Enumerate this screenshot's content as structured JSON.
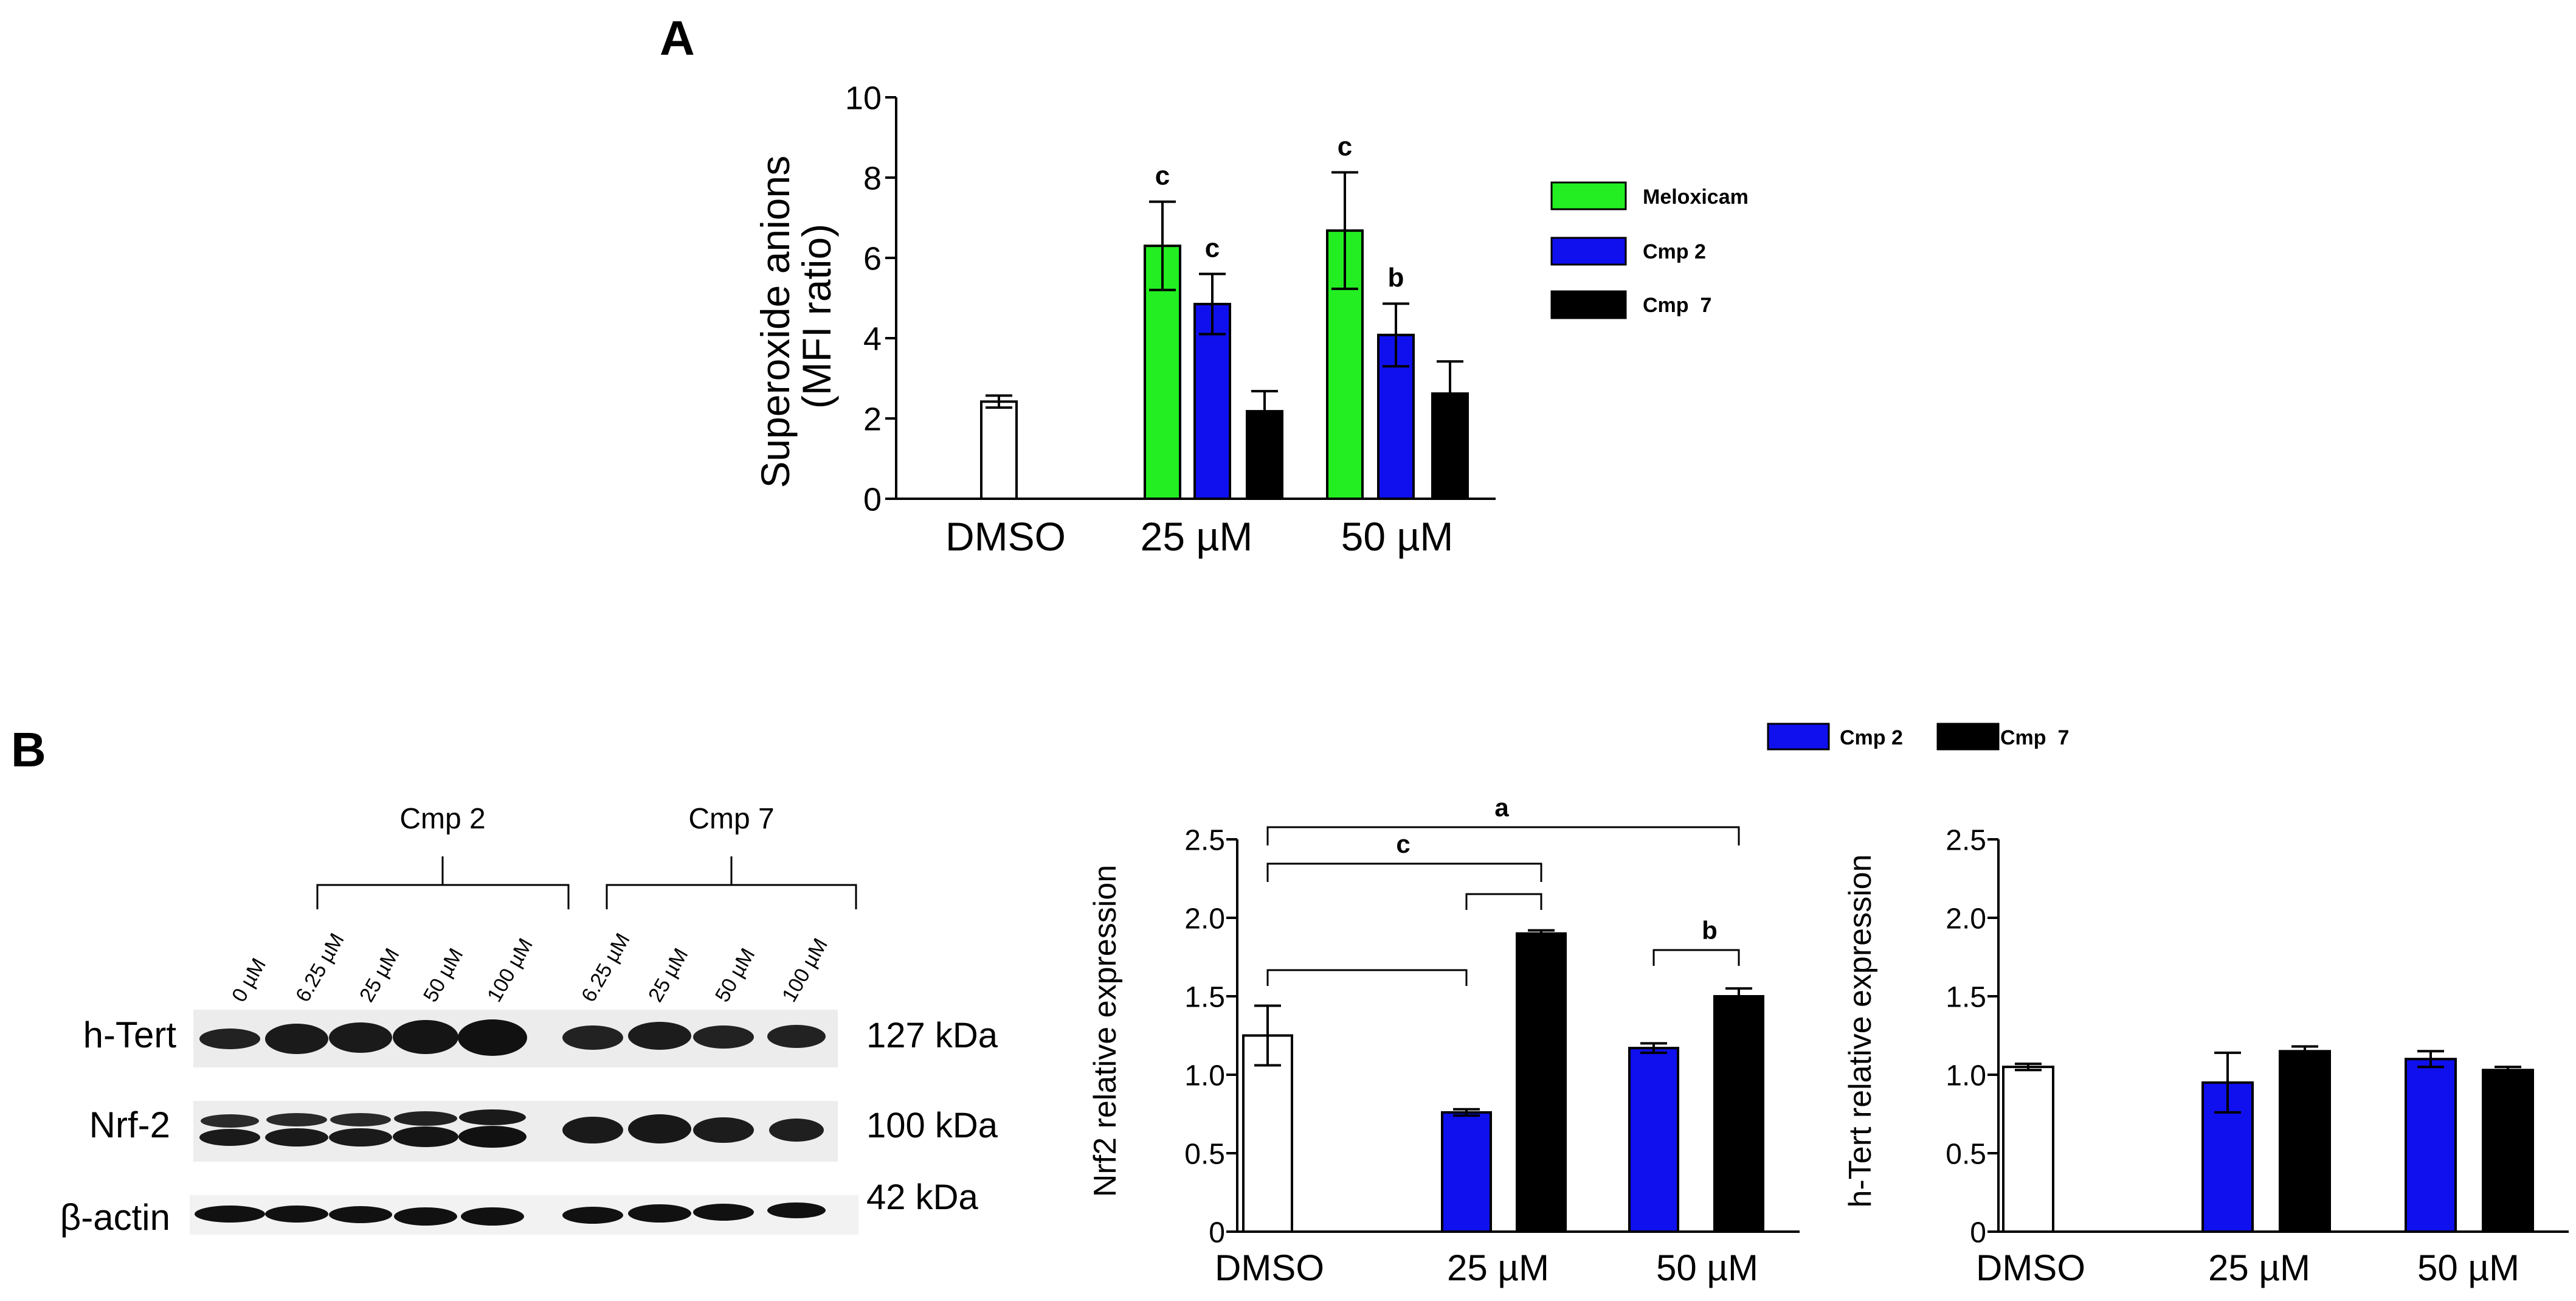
{
  "panels": {
    "a": "A",
    "b": "B"
  },
  "colors": {
    "meloxicam": "#22ee22",
    "cmp2": "#1010ee",
    "cmp7": "#000000",
    "dmso": "#ffffff"
  },
  "legend_a": [
    {
      "label": "Meloxicam",
      "color": "#22ee22"
    },
    {
      "label": "Cmp 2",
      "color": "#1010ee"
    },
    {
      "label": "Cmp  7",
      "color": "#000000"
    }
  ],
  "legend_b": [
    {
      "label": "Cmp 2",
      "color": "#1010ee"
    },
    {
      "label": "Cmp  7",
      "color": "#000000"
    }
  ],
  "chart_data": [
    {
      "id": "superoxide",
      "type": "bar",
      "ylabel_lines": [
        "Superoxide anions",
        "(MFI ratio)"
      ],
      "ylim": [
        0,
        10
      ],
      "yticks": [
        "0",
        "2",
        "4",
        "6",
        "8",
        "10"
      ],
      "ytick_values": [
        0,
        2,
        4,
        6,
        8,
        10
      ],
      "categories": [
        "DMSO",
        "25 µM",
        "50 µM"
      ],
      "bars": [
        {
          "category": "DMSO",
          "series": "DMSO",
          "value": 2.42,
          "error": 0.15,
          "label": ""
        },
        {
          "category": "25 µM",
          "series": "Meloxicam",
          "value": 6.3,
          "error": 1.1,
          "label": "c"
        },
        {
          "category": "25 µM",
          "series": "Cmp 2",
          "value": 4.85,
          "error": 0.75,
          "label": "c"
        },
        {
          "category": "25 µM",
          "series": "Cmp  7",
          "value": 2.18,
          "error": 0.5,
          "label": ""
        },
        {
          "category": "50 µM",
          "series": "Meloxicam",
          "value": 6.68,
          "error": 1.45,
          "label": "c"
        },
        {
          "category": "50 µM",
          "series": "Cmp 2",
          "value": 4.08,
          "error": 0.78,
          "label": "b"
        },
        {
          "category": "50 µM",
          "series": "Cmp  7",
          "value": 2.62,
          "error": 0.8,
          "label": ""
        }
      ]
    },
    {
      "id": "nrf2",
      "type": "bar",
      "ylabel": "Nrf2 relative expression",
      "ylim": [
        0,
        2.5
      ],
      "yticks": [
        "0",
        "0.5",
        "1.0",
        "1.5",
        "2.0",
        "2.5"
      ],
      "ytick_values": [
        0,
        0.5,
        1.0,
        1.5,
        2.0,
        2.5
      ],
      "categories": [
        "DMSO",
        "25 µM",
        "50 µM"
      ],
      "bars": [
        {
          "category": "DMSO",
          "series": "DMSO",
          "value": 1.25,
          "error": 0.19
        },
        {
          "category": "25 µM",
          "series": "Cmp 2",
          "value": 0.76,
          "error": 0.02
        },
        {
          "category": "25 µM",
          "series": "Cmp  7",
          "value": 1.9,
          "error": 0.02
        },
        {
          "category": "50 µM",
          "series": "Cmp 2",
          "value": 1.17,
          "error": 0.03
        },
        {
          "category": "50 µM",
          "series": "Cmp  7",
          "value": 1.5,
          "error": 0.05
        }
      ],
      "brackets": [
        {
          "from": "DMSO",
          "to": "50 µM Cmp  7",
          "label": "a"
        },
        {
          "from": "DMSO",
          "to": "25 µM Cmp  7",
          "label": "c"
        },
        {
          "from": "25 µM Cmp 2",
          "to": "25 µM Cmp  7",
          "label": ""
        },
        {
          "from": "DMSO",
          "to": "25 µM Cmp 2",
          "label": ""
        },
        {
          "from": "50 µM Cmp 2",
          "to": "50 µM Cmp  7",
          "label": "b"
        }
      ]
    },
    {
      "id": "htert",
      "type": "bar",
      "ylabel": "h-Tert relative expression",
      "ylim": [
        0,
        2.5
      ],
      "yticks": [
        "0",
        "0.5",
        "1.0",
        "1.5",
        "2.0",
        "2.5"
      ],
      "ytick_values": [
        0,
        0.5,
        1.0,
        1.5,
        2.0,
        2.5
      ],
      "categories": [
        "DMSO",
        "25 µM",
        "50 µM"
      ],
      "bars": [
        {
          "category": "DMSO",
          "series": "DMSO",
          "value": 1.05,
          "error": 0.02
        },
        {
          "category": "25 µM",
          "series": "Cmp 2",
          "value": 0.95,
          "error": 0.19
        },
        {
          "category": "25 µM",
          "series": "Cmp  7",
          "value": 1.15,
          "error": 0.03
        },
        {
          "category": "50 µM",
          "series": "Cmp 2",
          "value": 1.1,
          "error": 0.05
        },
        {
          "category": "50 µM",
          "series": "Cmp  7",
          "value": 1.03,
          "error": 0.02
        }
      ]
    }
  ],
  "blot": {
    "groups": [
      "Cmp 2",
      "Cmp 7"
    ],
    "lanes": [
      "0 µM",
      "6.25 µM",
      "25 µM",
      "50 µM",
      "100 µM",
      "6.25 µM",
      "25 µM",
      "50 µM",
      "100 µM"
    ],
    "proteins": [
      "h-Tert",
      "Nrf-2",
      "β-actin"
    ],
    "kda": [
      "127 kDa",
      "100 kDa",
      "42 kDa"
    ]
  }
}
